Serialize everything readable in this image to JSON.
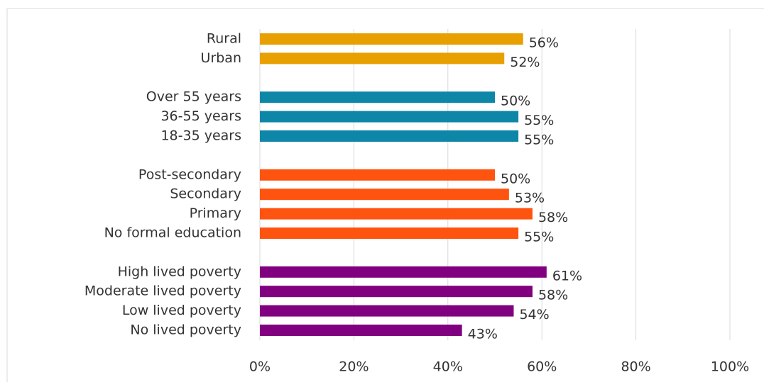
{
  "chart_data": {
    "type": "hbar",
    "categories": [
      "Rural",
      "Urban",
      null,
      "Over 55 years",
      "36-55 years",
      "18-35 years",
      null,
      "Post-secondary",
      "Secondary",
      "Primary",
      "No formal education",
      null,
      "High  lived poverty",
      "Moderate  lived poverty",
      "Low  lived poverty",
      "No lived poverty"
    ],
    "values": [
      56,
      52,
      null,
      50,
      55,
      55,
      null,
      50,
      53,
      58,
      55,
      null,
      61,
      58,
      54,
      43
    ],
    "value_labels": [
      "56%",
      "52%",
      null,
      "50%",
      "55%",
      "55%",
      null,
      "50%",
      "53%",
      "58%",
      "55%",
      null,
      "61%",
      "58%",
      "54%",
      "43%"
    ],
    "colors": [
      "#e8a000",
      "#e8a000",
      null,
      "#0e86a8",
      "#0e86a8",
      "#0e86a8",
      null,
      "#ff5310",
      "#ff5310",
      "#ff5310",
      "#ff5310",
      null,
      "#800080",
      "#800080",
      "#800080",
      "#800080"
    ],
    "xlim": [
      0,
      100
    ],
    "xticks": [
      {
        "value": 0,
        "label": "0%"
      },
      {
        "value": 20,
        "label": "20%"
      },
      {
        "value": 40,
        "label": "40%"
      },
      {
        "value": 60,
        "label": "60%"
      },
      {
        "value": 80,
        "label": "80%"
      },
      {
        "value": 100,
        "label": "100%"
      }
    ],
    "grid": true
  }
}
